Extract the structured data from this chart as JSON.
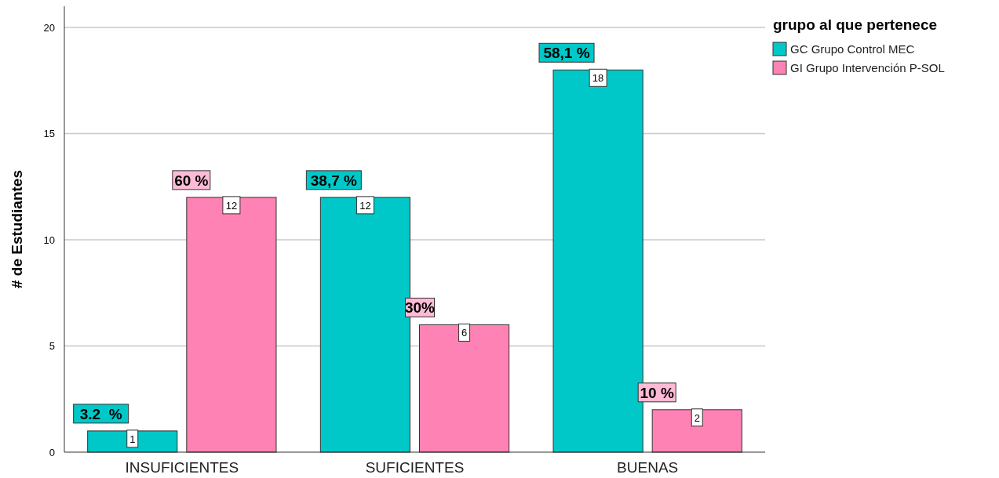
{
  "chart_data": {
    "type": "bar",
    "ylabel": "# de Estudiantes",
    "legend_title": "grupo al que pertenece",
    "categories": [
      "INSUFICIENTES",
      "SUFICIENTES",
      "BUENAS"
    ],
    "series": [
      {
        "name": "GC Grupo Control MEC",
        "color": "#00c8c8",
        "values": [
          1,
          12,
          18
        ]
      },
      {
        "name": "GI Grupo Intervención P-SOL",
        "color": "#ff82b4",
        "values": [
          12,
          6,
          2
        ]
      }
    ],
    "ylim": [
      0,
      21
    ],
    "yticks": [
      0,
      5,
      10,
      15,
      20
    ],
    "grid": "y",
    "legend": "top right",
    "data_labels": true,
    "annotations": [
      "3.2  %",
      "60 %",
      "38,7 %",
      "30%",
      "58,1 %",
      "10 %"
    ]
  }
}
